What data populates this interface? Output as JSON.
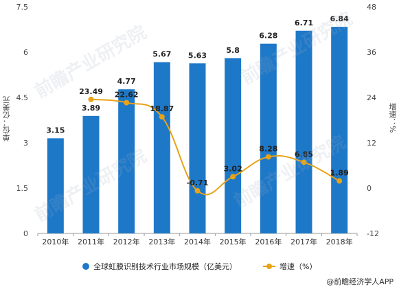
{
  "chart_data": {
    "type": "bar",
    "categories": [
      "2010年",
      "2011年",
      "2012年",
      "2013年",
      "2014年",
      "2015年",
      "2016年",
      "2017年",
      "2018年"
    ],
    "series": [
      {
        "name": "全球虹膜识别技术行业市场规模（亿美元）",
        "type": "bar",
        "axis": "left",
        "color": "#1e78c8",
        "values": [
          3.15,
          3.89,
          4.77,
          5.67,
          5.63,
          5.8,
          6.28,
          6.71,
          6.84
        ]
      },
      {
        "name": "增速（%）",
        "type": "line",
        "axis": "right",
        "color": "#e8a317",
        "values": [
          null,
          23.49,
          22.62,
          18.87,
          -0.71,
          3.02,
          8.28,
          6.85,
          1.89
        ]
      }
    ],
    "left_axis": {
      "label": "单位：亿美元",
      "range": [
        0,
        7.5
      ],
      "ticks": [
        "0",
        "1.5",
        "3",
        "4.5",
        "6",
        "7.5"
      ]
    },
    "right_axis": {
      "label": "增速：%",
      "range": [
        -12,
        48
      ],
      "ticks": [
        "-12",
        "0",
        "12",
        "24",
        "36",
        "48"
      ]
    },
    "grid": false,
    "legend": "bottom"
  },
  "legend": {
    "bar": "全球虹膜识别技术行业市场规模（亿美元）",
    "line": "增速（%）"
  },
  "source": "@前瞻经济学人APP",
  "watermark": "前瞻产业研究院"
}
